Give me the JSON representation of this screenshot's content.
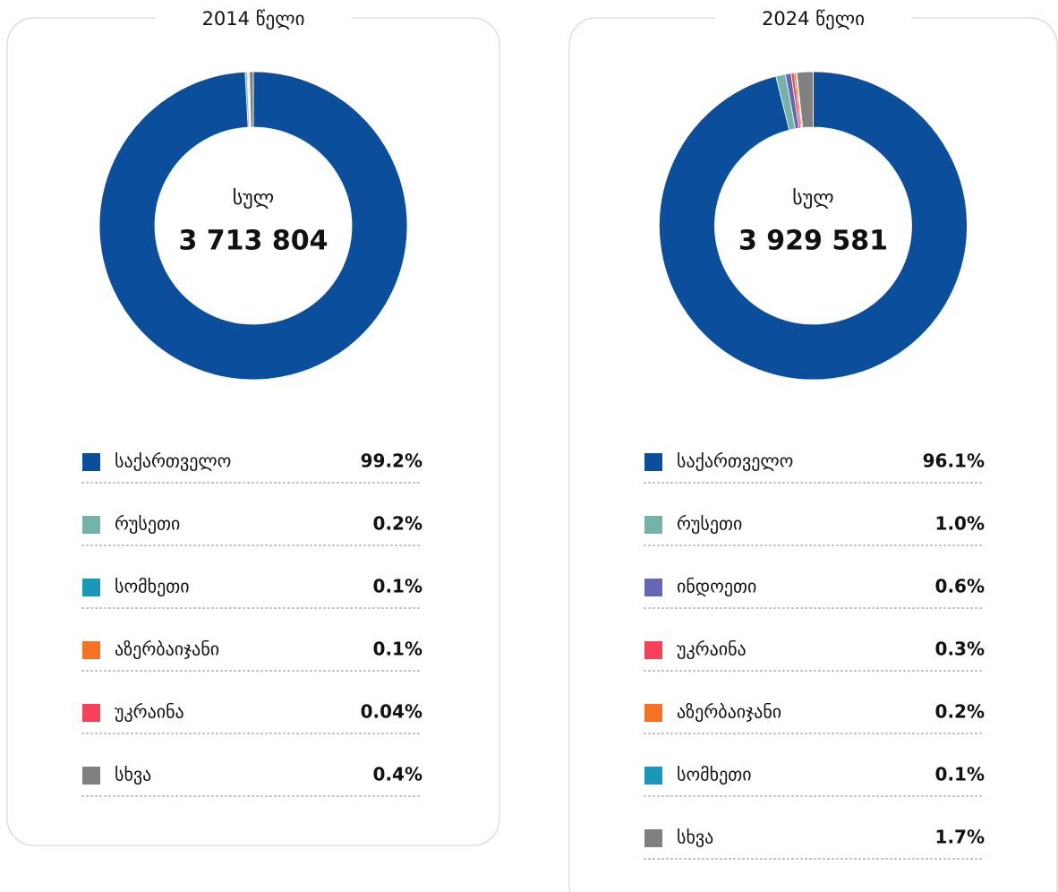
{
  "chart_data": [
    {
      "type": "pie",
      "title": "2014 წელი",
      "center_label": "სულ",
      "total": "3 713 804",
      "categories": [
        "საქართველო",
        "რუსეთი",
        "სომხეთი",
        "აზერბაიჯანი",
        "უკრაინა",
        "სხვა"
      ],
      "values": [
        99.2,
        0.2,
        0.1,
        0.1,
        0.04,
        0.4
      ],
      "value_labels": [
        "99.2%",
        "0.2%",
        "0.1%",
        "0.1%",
        "0.04%",
        "0.4%"
      ],
      "colors": [
        "#0b4f9c",
        "#74b2aa",
        "#1a98b8",
        "#f47221",
        "#f7405a",
        "#808080"
      ]
    },
    {
      "type": "pie",
      "title": "2024 წელი",
      "center_label": "სულ",
      "total": "3 929 581",
      "categories": [
        "საქართველო",
        "რუსეთი",
        "ინდოეთი",
        "უკრაინა",
        "აზერბაიჯანი",
        "სომხეთი",
        "სხვა"
      ],
      "values": [
        96.1,
        1.0,
        0.6,
        0.3,
        0.2,
        0.1,
        1.7
      ],
      "value_labels": [
        "96.1%",
        "1.0%",
        "0.6%",
        "0.3%",
        "0.2%",
        "0.1%",
        "1.7%"
      ],
      "colors": [
        "#0b4f9c",
        "#74b2aa",
        "#6468b4",
        "#f7405a",
        "#f47221",
        "#1a98b8",
        "#808080"
      ]
    }
  ]
}
